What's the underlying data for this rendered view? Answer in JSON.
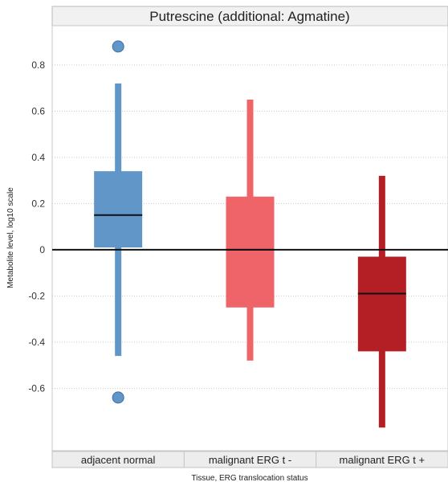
{
  "chart_data": {
    "type": "box",
    "title": "Putrescine (additional: Agmatine)",
    "xlabel": "Tissue, ERG translocation status",
    "ylabel": "Metabolite level, log10 scale",
    "ylim": [
      -0.87,
      0.97
    ],
    "yticks": [
      0.8,
      0.6,
      0.4,
      0.2,
      0,
      -0.2,
      -0.4,
      -0.6
    ],
    "ytick_labels": [
      "0.8",
      "0.6",
      "0.4",
      "0.2",
      "0",
      "-0.2",
      "-0.4",
      "-0.6"
    ],
    "reference_line": 0,
    "grid": "horizontal dotted",
    "categories": [
      "adjacent normal",
      "malignant ERG t -",
      "malignant ERG t +"
    ],
    "boxes": [
      {
        "category": "adjacent normal",
        "whisker_low": -0.46,
        "q1": 0.01,
        "median": 0.15,
        "q3": 0.34,
        "whisker_high": 0.72,
        "outliers": [
          0.88,
          -0.64
        ],
        "color": "#6096c8"
      },
      {
        "category": "malignant ERG t -",
        "whisker_low": -0.48,
        "q1": -0.25,
        "median": 0.0,
        "q3": 0.23,
        "whisker_high": 0.65,
        "outliers": [],
        "color": "#ef6468"
      },
      {
        "category": "malignant ERG t +",
        "whisker_low": -0.77,
        "q1": -0.44,
        "median": -0.19,
        "q3": -0.03,
        "whisker_high": 0.32,
        "outliers": [],
        "color": "#b41f26"
      }
    ]
  }
}
